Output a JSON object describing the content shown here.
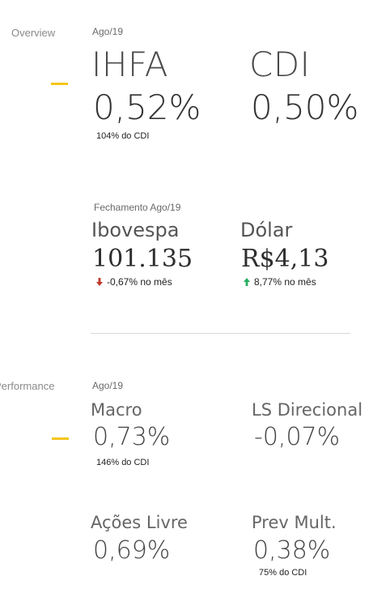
{
  "overview": {
    "label": "Overview",
    "period": "Ago/19",
    "funds": [
      {
        "name": "IHFA",
        "value": "0,52%",
        "note": "104% do CDI"
      },
      {
        "name": "CDI",
        "value": "0,50%"
      }
    ]
  },
  "closing": {
    "header": "Fechamento Ago/19",
    "items": [
      {
        "name": "Ibovespa",
        "value": "101.135",
        "change": "-0,67% no mês",
        "direction": "down",
        "arrow_color": "#c0392b"
      },
      {
        "name": "Dólar",
        "value": "R$4,13",
        "change": "8,77% no mês",
        "direction": "up",
        "arrow_color": "#27ae60"
      }
    ]
  },
  "performance": {
    "label": "Performance",
    "period": "Ago/19",
    "funds": [
      {
        "name": "Macro",
        "value": "0,73%",
        "note": "146% do CDI"
      },
      {
        "name": "LS Direcional",
        "value": "-0,07%"
      },
      {
        "name": "Ações Livre",
        "value": "0,69%"
      },
      {
        "name": "Prev Mult.",
        "value": "0,38%",
        "note": "75% do CDI"
      }
    ]
  },
  "accent_color": "#f5c518"
}
